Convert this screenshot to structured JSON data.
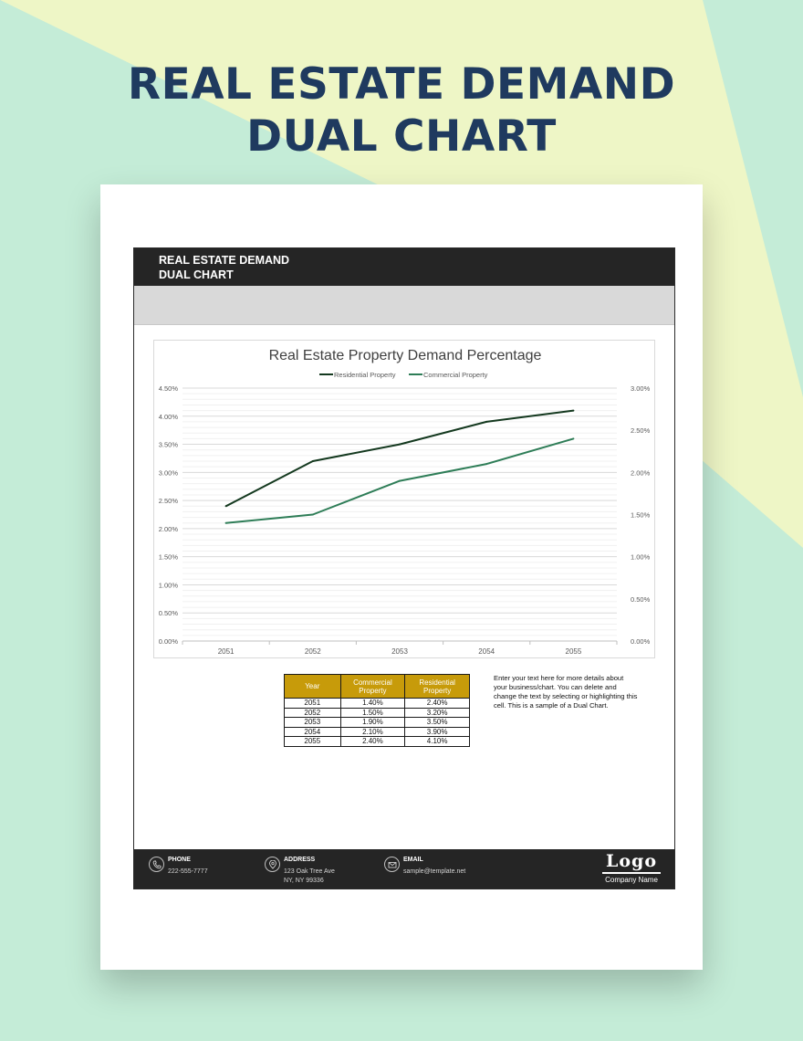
{
  "page": {
    "title_line1": "REAL ESTATE DEMAND",
    "title_line2": "DUAL CHART"
  },
  "colors": {
    "background": "#c4ecd7",
    "background_accent": "#eef6c6",
    "title": "#1f3a5f",
    "header_bar": "#252525",
    "table_header": "#c79b0a",
    "residential_line": "#14391f",
    "commercial_line": "#2e7d57"
  },
  "sheet": {
    "header_line1": "REAL ESTATE DEMAND",
    "header_line2": "DUAL CHART"
  },
  "chart_data": {
    "type": "line",
    "title": "Real Estate Property Demand Percentage",
    "categories": [
      "2051",
      "2052",
      "2053",
      "2054",
      "2055"
    ],
    "series": [
      {
        "name": "Residential Property",
        "axis": "left",
        "values": [
          2.4,
          3.2,
          3.5,
          3.9,
          4.1
        ],
        "color": "#14391f"
      },
      {
        "name": "Commercial Property",
        "axis": "right",
        "values": [
          1.4,
          1.5,
          1.9,
          2.1,
          2.4
        ],
        "color": "#2e7d57"
      }
    ],
    "y_left": {
      "min": 0,
      "max": 4.5,
      "step": 0.5,
      "ticks": [
        "0.00%",
        "0.50%",
        "1.00%",
        "1.50%",
        "2.00%",
        "2.50%",
        "3.00%",
        "3.50%",
        "4.00%",
        "4.50%"
      ]
    },
    "y_right": {
      "min": 0,
      "max": 3.0,
      "step": 0.5,
      "ticks": [
        "0.00%",
        "0.50%",
        "1.00%",
        "1.50%",
        "2.00%",
        "2.50%",
        "3.00%"
      ]
    },
    "legend_position": "top",
    "grid": true
  },
  "table": {
    "headers": [
      "Year",
      "Commercial Property",
      "Residential Property"
    ],
    "rows": [
      [
        "2051",
        "1.40%",
        "2.40%"
      ],
      [
        "2052",
        "1.50%",
        "3.20%"
      ],
      [
        "2053",
        "1.90%",
        "3.50%"
      ],
      [
        "2054",
        "2.10%",
        "3.90%"
      ],
      [
        "2055",
        "2.40%",
        "4.10%"
      ]
    ]
  },
  "note": "Enter your text here for more details about your business/chart. You can delete and change the text by selecting or highlighting this cell. This is a sample of a Dual Chart.",
  "footer": {
    "phone_label": "PHONE",
    "phone_value": "222-555-7777",
    "address_label": "ADDRESS",
    "address_line1": "123 Oak Tree Ave",
    "address_line2": "NY, NY 99336",
    "email_label": "EMAIL",
    "email_value": "sample@template.net",
    "logo_text": "Logo",
    "company_name": "Company Name",
    "icons": [
      "phone-icon",
      "address-icon",
      "email-icon"
    ]
  }
}
